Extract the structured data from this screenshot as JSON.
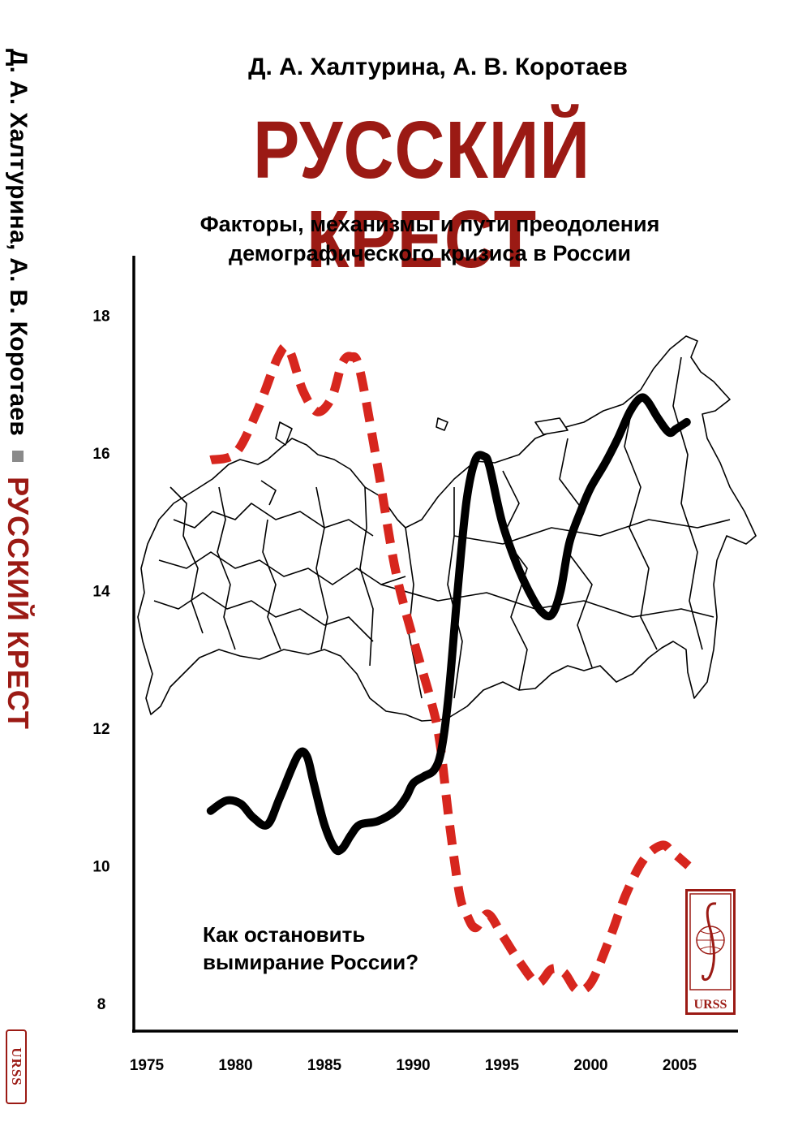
{
  "cover": {
    "authors": "Д. А. Халтурина, А. В. Коротаев",
    "title": "РУССКИЙ КРЕСТ",
    "subtitle_line1": "Факторы, механизмы и пути преодоления",
    "subtitle_line2": "демографического кризиса в России",
    "question_line1": "Как остановить",
    "question_line2": "вымирание России?",
    "publisher_logo": "URSS",
    "background_image": "russia-regions-map"
  },
  "spine": {
    "authors": "Д. А. Халтурина, А. В. Коротаев",
    "title": "РУССКИЙ КРЕСТ",
    "publisher_logo": "URSS"
  },
  "colors": {
    "title_red": "#9b1a14",
    "series_red": "#d7261e",
    "series_black": "#000000"
  },
  "chart_data": {
    "type": "line",
    "title": "",
    "xlabel": "",
    "ylabel": "",
    "xlim": [
      1975,
      2008
    ],
    "ylim": [
      7.5,
      19.2
    ],
    "x_ticks": [
      "1975",
      "1980",
      "1985",
      "1990",
      "1995",
      "2000",
      "2005"
    ],
    "y_ticks": [
      "8",
      "10",
      "12",
      "14",
      "16",
      "18"
    ],
    "series": [
      {
        "style": "dashed",
        "color": "#d7261e",
        "x": [
          1978.6,
          1980.0,
          1981.2,
          1982.4,
          1983.0,
          1983.8,
          1984.6,
          1985.4,
          1986.0,
          1986.5,
          1987.0,
          1988.0,
          1989.0,
          1990.0,
          1991.0,
          1991.5,
          1992.0,
          1992.6,
          1993.0,
          1993.5,
          1994.2,
          1995.0,
          1996.0,
          1997.0,
          1997.8,
          1998.5,
          1999.2,
          2000.0,
          2001.0,
          2002.0,
          2003.0,
          2004.0,
          2004.6,
          2005.5
        ],
        "y": [
          15.9,
          16.0,
          16.6,
          17.4,
          17.5,
          16.9,
          16.6,
          16.8,
          17.3,
          17.4,
          17.2,
          15.8,
          14.3,
          13.3,
          12.4,
          11.8,
          10.7,
          9.6,
          9.3,
          9.1,
          9.3,
          9.0,
          8.6,
          8.3,
          8.5,
          8.45,
          8.2,
          8.3,
          8.9,
          9.6,
          10.1,
          10.3,
          10.2,
          10.0
        ]
      },
      {
        "style": "solid",
        "color": "#000000",
        "x": [
          1978.6,
          1979.5,
          1980.3,
          1981.0,
          1981.8,
          1982.5,
          1983.5,
          1984.0,
          1984.4,
          1985.0,
          1985.6,
          1986.0,
          1986.5,
          1987.0,
          1988.0,
          1989.0,
          1989.6,
          1990.0,
          1990.6,
          1991.2,
          1991.6,
          1992.0,
          1992.5,
          1993.0,
          1993.5,
          1994.0,
          1994.3,
          1995.0,
          1995.8,
          1996.5,
          1997.2,
          1997.8,
          1998.3,
          1998.8,
          1999.5,
          2000.0,
          2000.8,
          2001.5,
          2002.2,
          2002.8,
          2003.2,
          2003.8,
          2004.4,
          2004.8,
          2005.4
        ],
        "y": [
          10.8,
          10.95,
          10.9,
          10.7,
          10.6,
          11.0,
          11.6,
          11.6,
          11.2,
          10.6,
          10.25,
          10.25,
          10.45,
          10.6,
          10.65,
          10.8,
          11.0,
          11.2,
          11.3,
          11.4,
          11.7,
          12.5,
          14.0,
          15.3,
          15.9,
          15.95,
          15.8,
          15.0,
          14.4,
          14.0,
          13.7,
          13.65,
          14.0,
          14.7,
          15.2,
          15.5,
          15.85,
          16.2,
          16.6,
          16.8,
          16.75,
          16.5,
          16.3,
          16.35,
          16.45
        ]
      }
    ]
  }
}
